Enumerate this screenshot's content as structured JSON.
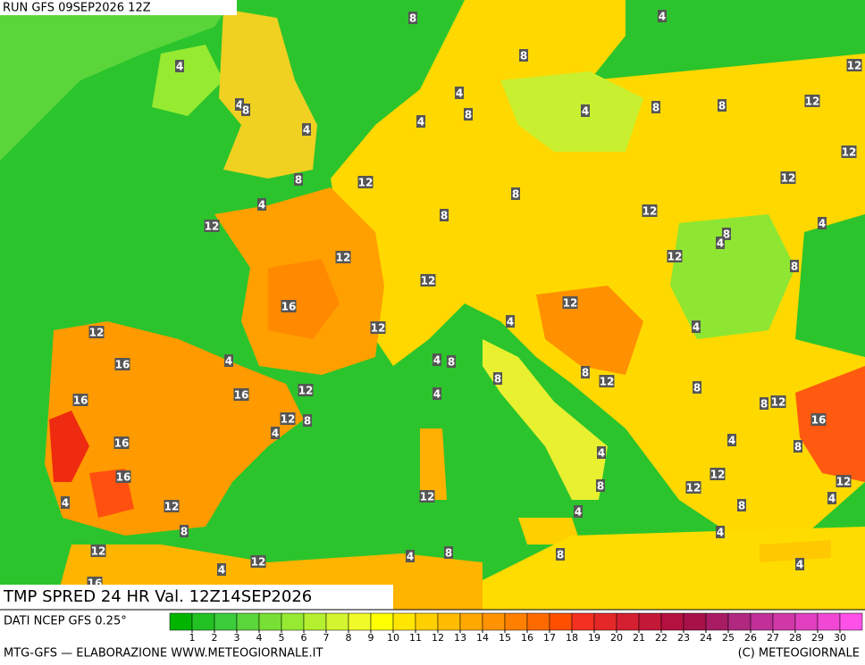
{
  "header": {
    "run": "RUN GFS 09SEP2026 12Z",
    "title": "TMP SPRED 24 HR Val. 12Z14SEP2026"
  },
  "footer": {
    "source": "DATI NCEP GFS 0.25°",
    "credit": "MTG-GFS — ELABORAZIONE WWW.METEOGIORNALE.IT",
    "copyright": "(C) METEOGIORNALE"
  },
  "map": {
    "contour_labels": [
      8,
      4,
      8,
      4,
      12,
      4,
      4,
      8,
      8,
      4,
      8,
      8,
      12,
      4,
      4,
      12,
      8,
      12,
      12,
      8,
      4,
      8,
      12,
      4,
      12,
      8,
      4,
      12,
      12,
      8,
      12,
      16,
      12,
      4,
      12,
      4,
      12,
      16,
      4,
      4,
      8,
      8,
      12,
      8,
      12,
      16,
      4,
      8,
      12,
      8,
      16,
      12,
      8,
      16,
      4,
      16,
      4,
      8,
      4,
      16,
      12,
      12,
      12,
      8,
      12,
      4,
      4,
      12,
      8,
      4,
      8,
      4,
      12,
      12,
      4,
      8,
      8,
      4,
      4,
      16
    ]
  },
  "colorbar": {
    "ticks": [
      1,
      2,
      3,
      4,
      5,
      6,
      7,
      8,
      9,
      10,
      11,
      12,
      13,
      14,
      15,
      16,
      17,
      18,
      19,
      20,
      21,
      22,
      23,
      24,
      25,
      26,
      27,
      28,
      29,
      30
    ],
    "colors": [
      "#00b400",
      "#22c222",
      "#3ccc3c",
      "#5ad63a",
      "#78e034",
      "#96ea32",
      "#b4f030",
      "#d2f530",
      "#f0fa28",
      "#ffff00",
      "#ffe600",
      "#ffd000",
      "#ffbc00",
      "#ffa800",
      "#ff9400",
      "#ff8000",
      "#ff6a00",
      "#ff5000",
      "#f43020",
      "#e42828",
      "#d42030",
      "#c41838",
      "#b41040",
      "#a81048",
      "#a81c64",
      "#b02880",
      "#c03098",
      "#d038a8",
      "#e040c0",
      "#f048d4",
      "#ff50e8"
    ]
  }
}
